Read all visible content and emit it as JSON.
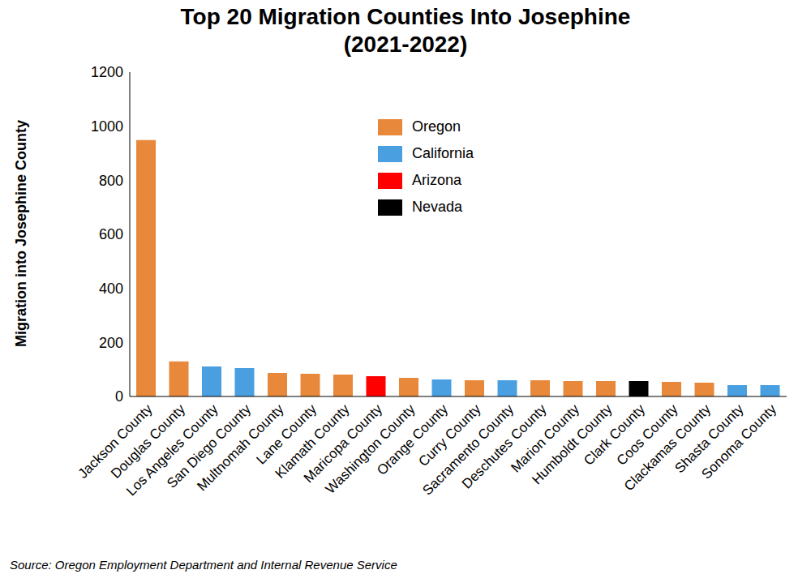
{
  "chart_data": {
    "type": "bar",
    "title": "Top 20 Migration Counties Into Josephine",
    "subtitle": "(2021-2022)",
    "y_label": "Migration into Josephine County",
    "source": "Source: Oregon Employment Department and Internal Revenue Service",
    "categories": [
      "Jackson County",
      "Douglas County",
      "Los Angeles County",
      "San Diego County",
      "Multnomah County",
      "Lane County",
      "Klamath County",
      "Maricopa County",
      "Washington County",
      "Orange County",
      "Curry County",
      "Sacramento County",
      "Deschutes County",
      "Marion County",
      "Humboldt County",
      "Clark County",
      "Coos County",
      "Clackamas County",
      "Shasta County",
      "Sonoma County"
    ],
    "series": [
      {
        "name": "Oregon",
        "color": "#e8883a",
        "values": [
          949,
          130,
          null,
          null,
          87,
          84,
          81,
          null,
          69,
          null,
          60,
          null,
          60,
          57,
          57,
          null,
          54,
          51,
          null,
          null
        ]
      },
      {
        "name": "California",
        "color": "#4a9fe0",
        "values": [
          null,
          null,
          111,
          105,
          null,
          null,
          null,
          null,
          null,
          63,
          null,
          60,
          null,
          null,
          null,
          null,
          null,
          null,
          42,
          42
        ]
      },
      {
        "name": "Arizona",
        "color": "#ff0000",
        "values": [
          null,
          null,
          null,
          null,
          null,
          null,
          null,
          75,
          null,
          null,
          null,
          null,
          null,
          null,
          null,
          null,
          null,
          null,
          null,
          null
        ]
      },
      {
        "name": "Nevada",
        "color": "#000000",
        "values": [
          null,
          null,
          null,
          null,
          null,
          null,
          null,
          null,
          null,
          null,
          null,
          null,
          null,
          null,
          null,
          57,
          null,
          null,
          null,
          null
        ]
      }
    ],
    "ylim": [
      0,
      1200
    ],
    "yticks": [
      0,
      200,
      400,
      600,
      800,
      1000,
      1200
    ],
    "grid": false,
    "stacked": true,
    "legend": "top"
  }
}
